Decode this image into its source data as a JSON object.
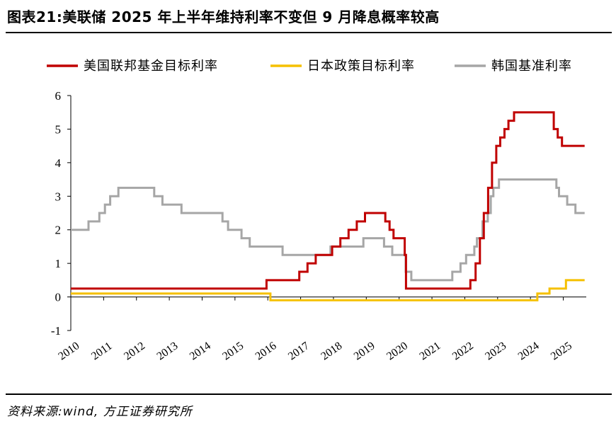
{
  "title": "图表21:美联储 2025 年上半年维持利率不变但 9 月降息概率较高",
  "source": "资料来源:wind, 方正证券研究所",
  "chart_data": {
    "type": "line",
    "title": "",
    "xlabel": "",
    "ylabel": "",
    "ylim": [
      -1,
      6
    ],
    "xlim": [
      2010,
      2025.7
    ],
    "y_ticks": [
      "-1",
      "0",
      "1",
      "2",
      "3",
      "4",
      "5",
      "6"
    ],
    "x_ticks": [
      "2010",
      "2011",
      "2012",
      "2013",
      "2014",
      "2015",
      "2016",
      "2017",
      "2018",
      "2019",
      "2020",
      "2021",
      "2022",
      "2023",
      "2024",
      "2025"
    ],
    "grid": false,
    "legend_position": "top",
    "step": true,
    "series": [
      {
        "name": "美国联邦基金目标利率",
        "color": "#C00000",
        "points": [
          [
            2010.0,
            0.25
          ],
          [
            2015.96,
            0.25
          ],
          [
            2015.96,
            0.5
          ],
          [
            2016.96,
            0.5
          ],
          [
            2016.96,
            0.75
          ],
          [
            2017.21,
            0.75
          ],
          [
            2017.21,
            1.0
          ],
          [
            2017.46,
            1.0
          ],
          [
            2017.46,
            1.25
          ],
          [
            2017.96,
            1.25
          ],
          [
            2017.96,
            1.5
          ],
          [
            2018.21,
            1.5
          ],
          [
            2018.21,
            1.75
          ],
          [
            2018.46,
            1.75
          ],
          [
            2018.46,
            2.0
          ],
          [
            2018.71,
            2.0
          ],
          [
            2018.71,
            2.25
          ],
          [
            2018.96,
            2.25
          ],
          [
            2018.96,
            2.5
          ],
          [
            2019.58,
            2.5
          ],
          [
            2019.58,
            2.25
          ],
          [
            2019.71,
            2.25
          ],
          [
            2019.71,
            2.0
          ],
          [
            2019.83,
            2.0
          ],
          [
            2019.83,
            1.75
          ],
          [
            2020.17,
            1.75
          ],
          [
            2020.17,
            1.25
          ],
          [
            2020.21,
            1.25
          ],
          [
            2020.21,
            0.25
          ],
          [
            2022.17,
            0.25
          ],
          [
            2022.17,
            0.5
          ],
          [
            2022.33,
            0.5
          ],
          [
            2022.33,
            1.0
          ],
          [
            2022.46,
            1.0
          ],
          [
            2022.46,
            1.75
          ],
          [
            2022.58,
            1.75
          ],
          [
            2022.58,
            2.5
          ],
          [
            2022.71,
            2.5
          ],
          [
            2022.71,
            3.25
          ],
          [
            2022.83,
            3.25
          ],
          [
            2022.83,
            4.0
          ],
          [
            2022.96,
            4.0
          ],
          [
            2022.96,
            4.5
          ],
          [
            2023.08,
            4.5
          ],
          [
            2023.08,
            4.75
          ],
          [
            2023.21,
            4.75
          ],
          [
            2023.21,
            5.0
          ],
          [
            2023.33,
            5.0
          ],
          [
            2023.33,
            5.25
          ],
          [
            2023.5,
            5.25
          ],
          [
            2023.5,
            5.5
          ],
          [
            2024.71,
            5.5
          ],
          [
            2024.71,
            5.0
          ],
          [
            2024.83,
            5.0
          ],
          [
            2024.83,
            4.75
          ],
          [
            2024.96,
            4.75
          ],
          [
            2024.96,
            4.5
          ],
          [
            2025.65,
            4.5
          ]
        ]
      },
      {
        "name": "日本政策目标利率",
        "color": "#F5C000",
        "points": [
          [
            2010.0,
            0.1
          ],
          [
            2016.08,
            0.1
          ],
          [
            2016.08,
            -0.1
          ],
          [
            2024.21,
            -0.1
          ],
          [
            2024.21,
            0.1
          ],
          [
            2024.58,
            0.1
          ],
          [
            2024.58,
            0.25
          ],
          [
            2025.08,
            0.25
          ],
          [
            2025.08,
            0.5
          ],
          [
            2025.65,
            0.5
          ]
        ]
      },
      {
        "name": "韩国基准利率",
        "color": "#A6A6A6",
        "points": [
          [
            2010.0,
            2.0
          ],
          [
            2010.54,
            2.0
          ],
          [
            2010.54,
            2.25
          ],
          [
            2010.87,
            2.25
          ],
          [
            2010.87,
            2.5
          ],
          [
            2011.04,
            2.5
          ],
          [
            2011.04,
            2.75
          ],
          [
            2011.2,
            2.75
          ],
          [
            2011.2,
            3.0
          ],
          [
            2011.45,
            3.0
          ],
          [
            2011.45,
            3.25
          ],
          [
            2012.54,
            3.25
          ],
          [
            2012.54,
            3.0
          ],
          [
            2012.79,
            3.0
          ],
          [
            2012.79,
            2.75
          ],
          [
            2013.37,
            2.75
          ],
          [
            2013.37,
            2.5
          ],
          [
            2014.62,
            2.5
          ],
          [
            2014.62,
            2.25
          ],
          [
            2014.79,
            2.25
          ],
          [
            2014.79,
            2.0
          ],
          [
            2015.2,
            2.0
          ],
          [
            2015.2,
            1.75
          ],
          [
            2015.45,
            1.75
          ],
          [
            2015.45,
            1.5
          ],
          [
            2016.45,
            1.5
          ],
          [
            2016.45,
            1.25
          ],
          [
            2017.91,
            1.25
          ],
          [
            2017.91,
            1.5
          ],
          [
            2018.91,
            1.5
          ],
          [
            2018.91,
            1.75
          ],
          [
            2019.54,
            1.75
          ],
          [
            2019.54,
            1.5
          ],
          [
            2019.79,
            1.5
          ],
          [
            2019.79,
            1.25
          ],
          [
            2020.2,
            1.25
          ],
          [
            2020.2,
            0.75
          ],
          [
            2020.37,
            0.75
          ],
          [
            2020.37,
            0.5
          ],
          [
            2021.62,
            0.5
          ],
          [
            2021.62,
            0.75
          ],
          [
            2021.87,
            0.75
          ],
          [
            2021.87,
            1.0
          ],
          [
            2022.04,
            1.0
          ],
          [
            2022.04,
            1.25
          ],
          [
            2022.29,
            1.25
          ],
          [
            2022.29,
            1.5
          ],
          [
            2022.37,
            1.5
          ],
          [
            2022.37,
            1.75
          ],
          [
            2022.54,
            1.75
          ],
          [
            2022.54,
            2.25
          ],
          [
            2022.7,
            2.25
          ],
          [
            2022.7,
            2.5
          ],
          [
            2022.79,
            2.5
          ],
          [
            2022.79,
            3.0
          ],
          [
            2022.87,
            3.0
          ],
          [
            2022.87,
            3.25
          ],
          [
            2023.04,
            3.25
          ],
          [
            2023.04,
            3.5
          ],
          [
            2024.79,
            3.5
          ],
          [
            2024.79,
            3.25
          ],
          [
            2024.87,
            3.25
          ],
          [
            2024.87,
            3.0
          ],
          [
            2025.12,
            3.0
          ],
          [
            2025.12,
            2.75
          ],
          [
            2025.37,
            2.75
          ],
          [
            2025.37,
            2.5
          ],
          [
            2025.65,
            2.5
          ]
        ]
      }
    ]
  }
}
